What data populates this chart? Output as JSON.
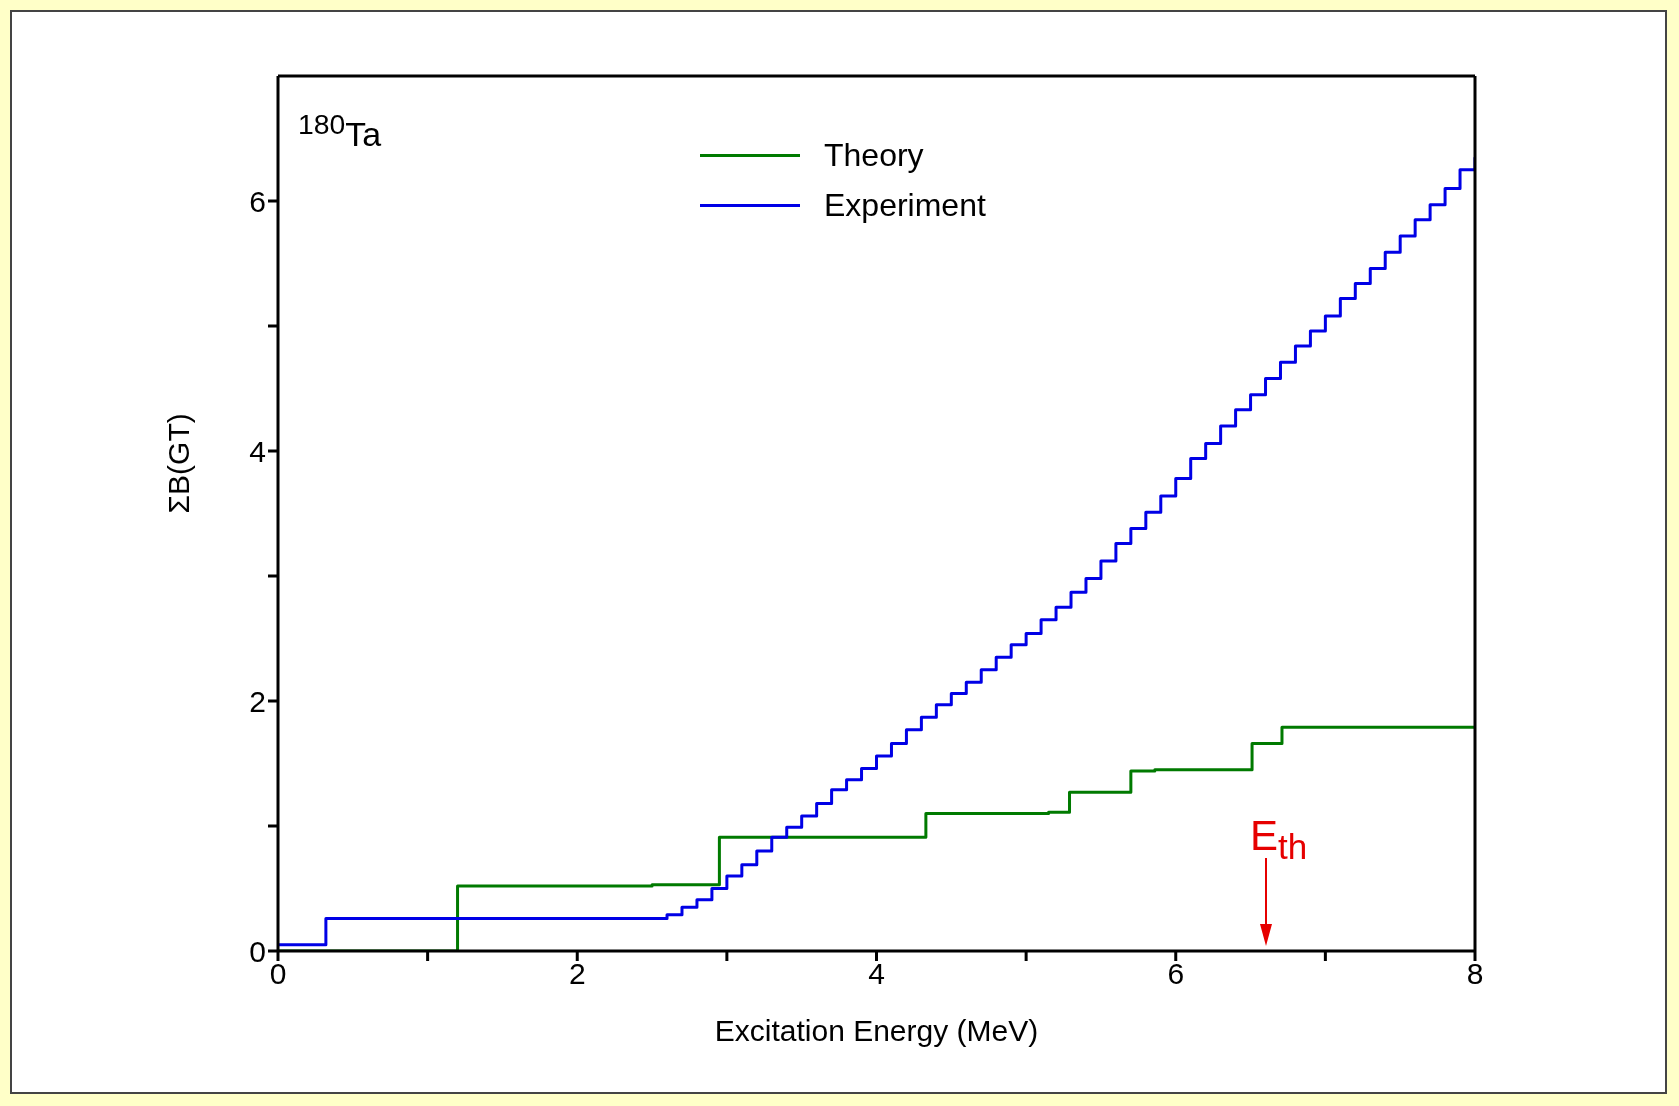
{
  "chart_data": {
    "type": "step",
    "xlabel": "Excitation Energy (MeV)",
    "ylabel": "ΣB(GT)",
    "xlim": [
      0,
      8
    ],
    "xticks": [
      0,
      {
        "value": 1,
        "label": null
      },
      2,
      {
        "value": 3,
        "label": null
      },
      4,
      {
        "value": 5,
        "label": null
      },
      6,
      {
        "value": 7,
        "label": null
      },
      8
    ],
    "ylim": [
      0,
      7
    ],
    "yticks": [
      0,
      {
        "value": 1,
        "label": null
      },
      2,
      {
        "value": 3,
        "label": null
      },
      4,
      {
        "value": 5,
        "label": null
      },
      6
    ],
    "legend": "top",
    "line_style": "solid",
    "marker": "none",
    "series": [
      {
        "name": "Theory",
        "color": "#007a00",
        "x": [
          0,
          1.2,
          2.5,
          2.95,
          4.33,
          5.15,
          5.29,
          5.7,
          5.86,
          6.51,
          6.71,
          8
        ],
        "values": [
          0,
          0.52,
          0.53,
          0.91,
          1.1,
          1.11,
          1.27,
          1.44,
          1.45,
          1.66,
          1.79,
          1.79
        ]
      },
      {
        "name": "Experiment",
        "color": "#0000e6",
        "x": [
          0,
          0.32,
          2.6,
          2.7,
          2.8,
          2.9,
          3.0,
          3.1,
          3.2,
          3.3,
          3.4,
          3.5,
          3.6,
          3.7,
          3.8,
          3.9,
          4.0,
          4.1,
          4.2,
          4.3,
          4.4,
          4.5,
          4.6,
          4.7,
          4.8,
          4.9,
          5.0,
          5.1,
          5.2,
          5.3,
          5.4,
          5.5,
          5.6,
          5.7,
          5.8,
          5.9,
          6.0,
          6.1,
          6.2,
          6.3,
          6.4,
          6.5,
          6.6,
          6.7,
          6.8,
          6.9,
          7.0,
          7.1,
          7.2,
          7.3,
          7.4,
          7.5,
          7.6,
          7.7,
          7.8,
          7.9,
          8
        ],
        "values": [
          0.05,
          0.26,
          0.29,
          0.35,
          0.41,
          0.5,
          0.6,
          0.69,
          0.8,
          0.91,
          0.99,
          1.08,
          1.18,
          1.29,
          1.37,
          1.46,
          1.56,
          1.66,
          1.77,
          1.87,
          1.97,
          2.06,
          2.15,
          2.25,
          2.35,
          2.45,
          2.54,
          2.65,
          2.75,
          2.87,
          2.98,
          3.12,
          3.26,
          3.38,
          3.51,
          3.64,
          3.78,
          3.94,
          4.06,
          4.2,
          4.33,
          4.45,
          4.58,
          4.71,
          4.84,
          4.96,
          5.08,
          5.22,
          5.34,
          5.46,
          5.59,
          5.72,
          5.85,
          5.97,
          6.1,
          6.25,
          6.35
        ]
      }
    ],
    "annotations": [
      "$^{180}$Ta",
      "E$_{th}$"
    ]
  }
}
